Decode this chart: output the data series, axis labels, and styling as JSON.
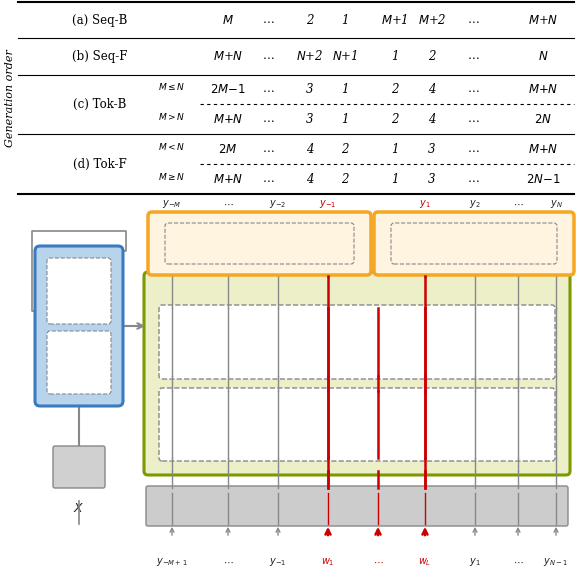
{
  "fig_width": 5.82,
  "fig_height": 5.76,
  "orange_color": "#F5A623",
  "olive_color": "#7A9A00",
  "olive_fill": "#EDEFC8",
  "blue_color": "#3A7BBF",
  "blue_fill": "#B8D4EC",
  "gray_color": "#888888",
  "red_color": "#CC0000",
  "light_gray_fill": "#D8D8D8",
  "embed_fill": "#D0D0D0",
  "table_rows": [
    {
      "label": "(a) Seq-B",
      "cond": "",
      "left_cols": [
        "$M$",
        "$\\cdots$",
        "2",
        "1"
      ],
      "right_cols": [
        "$M$+1",
        "$M$+2",
        "$\\cdots$",
        "$M$+$N$"
      ]
    },
    {
      "label": "(b) Seq-F",
      "cond": "",
      "left_cols": [
        "$M$+$N$",
        "$\\cdots$",
        "$N$+2",
        "$N$+1"
      ],
      "right_cols": [
        "1",
        "2",
        "$\\cdots$",
        "$N$"
      ]
    },
    {
      "label": "(c) Tok-B",
      "cond": "$M{\\leq}N$",
      "left_cols": [
        "$2M{-}1$",
        "$\\cdots$",
        "3",
        "1"
      ],
      "right_cols": [
        "2",
        "4",
        "$\\cdots$",
        "$M{+}N$"
      ]
    },
    {
      "label": "",
      "cond": "$M{>}N$",
      "left_cols": [
        "$M{+}N$",
        "$\\cdots$",
        "3",
        "1"
      ],
      "right_cols": [
        "2",
        "4",
        "$\\cdots$",
        "$2N$"
      ]
    },
    {
      "label": "(d) Tok-F",
      "cond": "$M{<}N$",
      "left_cols": [
        "$2M$",
        "$\\cdots$",
        "4",
        "2"
      ],
      "right_cols": [
        "1",
        "3",
        "$\\cdots$",
        "$M{+}N$"
      ]
    },
    {
      "label": "",
      "cond": "$M{\\geq}N$",
      "left_cols": [
        "$M{+}N$",
        "$\\cdots$",
        "4",
        "2"
      ],
      "right_cols": [
        "1",
        "3",
        "$\\cdots$",
        "$2N{-}1$"
      ]
    }
  ],
  "input_labels": [
    "$y_{-M+1}$",
    "$\\cdots$",
    "$y_{-1}$",
    "$w_1$",
    "$\\cdots$",
    "$w_L$",
    "$y_1$",
    "$\\cdots$",
    "$y_{N-1}$"
  ],
  "input_red": [
    false,
    false,
    false,
    true,
    true,
    true,
    false,
    false,
    false
  ],
  "output_left_labels": [
    "$y_{-M}$",
    "$\\cdots$",
    "$y_{-2}$",
    "$y_{-1}$"
  ],
  "output_left_red": [
    false,
    false,
    false,
    true
  ],
  "output_right_labels": [
    "$y_1$",
    "$y_2$",
    "$\\cdots$",
    "$y_N$"
  ],
  "output_right_red": [
    true,
    false,
    false,
    false
  ]
}
